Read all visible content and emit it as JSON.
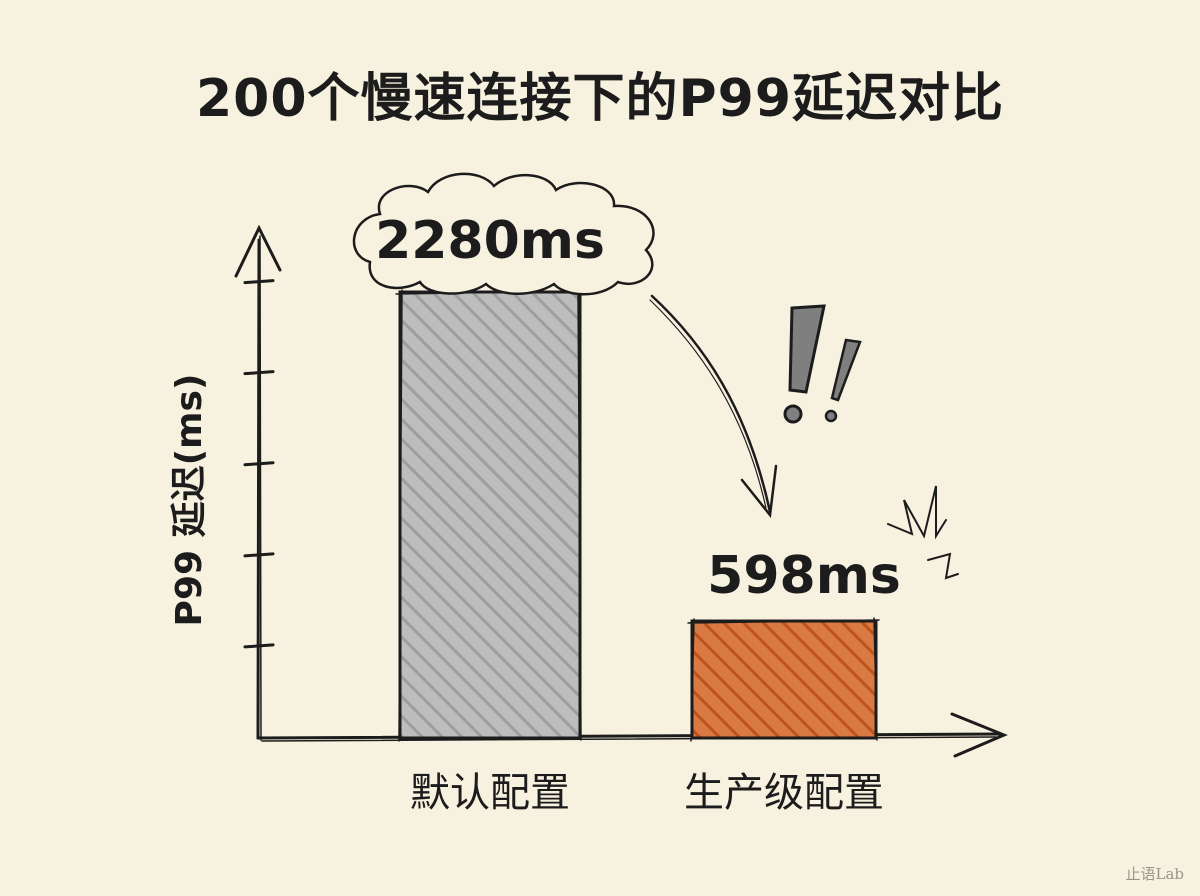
{
  "chart_data": {
    "type": "bar",
    "title": "200个慢速连接下的P99延迟对比",
    "ylabel": "P99 延迟(ms)",
    "xlabel": "",
    "categories": [
      "默认配置",
      "生产级配置"
    ],
    "values": [
      2280,
      598
    ],
    "data_labels": [
      "2280ms",
      "598ms"
    ],
    "ylim": [
      0,
      2280
    ],
    "grid": false,
    "legend": "none",
    "bar_colors": [
      "#b4b4b4",
      "#d0642a"
    ],
    "annotation": "!!"
  },
  "watermark": "止语Lab",
  "colors": {
    "background": "#f7f1df",
    "ink": "#1c1c1c"
  }
}
